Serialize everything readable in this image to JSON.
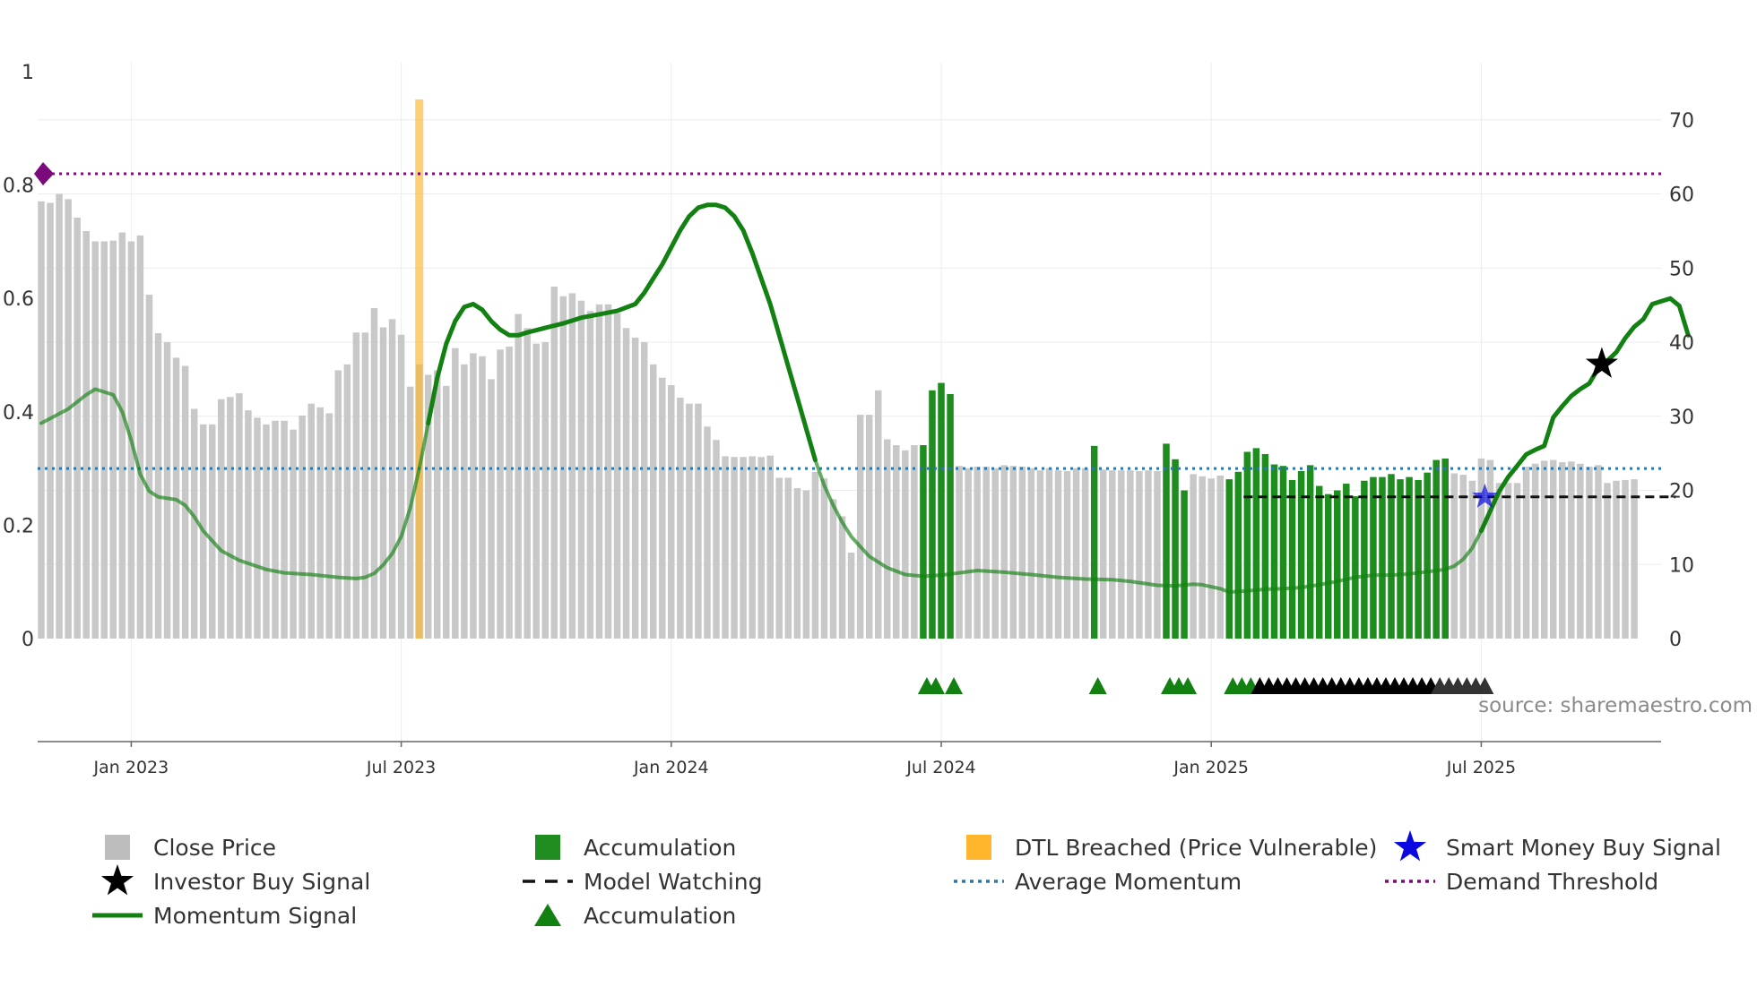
{
  "chart_data": {
    "type": "bar",
    "source_text": "source: sharemaestro.com",
    "left_axis": {
      "ticks": [
        "0",
        "0.2",
        "0.4",
        "0.6",
        "0.8",
        "1"
      ],
      "values": [
        0,
        0.2,
        0.4,
        0.6,
        0.8,
        1
      ],
      "range": [
        0,
        1
      ]
    },
    "right_axis": {
      "ticks": [
        "0",
        "10",
        "20",
        "30",
        "40",
        "50",
        "60",
        "70"
      ],
      "values": [
        0,
        10,
        20,
        30,
        40,
        50,
        60,
        70
      ],
      "range": [
        0,
        76.5
      ]
    },
    "x_axis": {
      "labels": [
        "Jan 2023",
        "Jul 2023",
        "Jan 2024",
        "Jul 2024",
        "Jan 2025",
        "Jul 2025"
      ],
      "label_week_index": [
        10,
        40,
        70,
        100,
        130,
        160
      ],
      "num_weeks": 181
    },
    "close_price": [
      59.0,
      58.8,
      60.0,
      59.3,
      56.8,
      55.0,
      53.6,
      53.6,
      53.7,
      54.8,
      53.6,
      54.4,
      46.4,
      41.2,
      40.0,
      37.9,
      36.8,
      31.0,
      28.9,
      28.9,
      32.3,
      32.6,
      33.1,
      30.8,
      29.8,
      28.9,
      29.4,
      29.4,
      28.2,
      30.1,
      31.7,
      31.2,
      30.4,
      36.2,
      37.0,
      41.3,
      41.3,
      44.6,
      42.0,
      43.1,
      41.0,
      34.0,
      37.0,
      35.6,
      36.2,
      34.1,
      39.2,
      37.0,
      38.5,
      38.1,
      35.0,
      39.0,
      39.4,
      43.8,
      41.9,
      39.8,
      40.0,
      47.5,
      46.2,
      46.6,
      45.6,
      44.2,
      45.1,
      45.1,
      43.9,
      41.9,
      40.6,
      40.0,
      37.0,
      35.2,
      34.2,
      32.5,
      31.7,
      31.7,
      28.6,
      26.8,
      24.6,
      24.5,
      24.5,
      24.6,
      24.5,
      24.7,
      21.7,
      21.7,
      20.3,
      20.0,
      22.5,
      21.6,
      18.8,
      16.5,
      11.6,
      30.2,
      30.2,
      33.5,
      26.9,
      26.1,
      25.4,
      26.1,
      26.8,
      25.1,
      24.8,
      23.4,
      23.3,
      23.0,
      23.2,
      23.2,
      23.0,
      23.4,
      23.3,
      23.2,
      23.0,
      22.7,
      23.0,
      22.7,
      22.6,
      23.0,
      23.0,
      22.0,
      22.8,
      22.7,
      22.7,
      22.7,
      22.6,
      22.7,
      22.6,
      22.5,
      22.3,
      21.9,
      22.2,
      21.9,
      21.6,
      22.0,
      21.7,
      21.6,
      21.6,
      21.6,
      21.8,
      21.3,
      21.5,
      21.4,
      21.5,
      21.9,
      21.9,
      21.9,
      22.3,
      22.1,
      21.4,
      21.8,
      22.2,
      22.6,
      22.6,
      22.5,
      22.6,
      22.5,
      22.3,
      22.3,
      22.2,
      22.3,
      22.1,
      21.3,
      24.3,
      24.1,
      21.0,
      21.0,
      21.0,
      23.2,
      23.6,
      24.0,
      24.1,
      23.8,
      23.9,
      23.6,
      23.2,
      23.4,
      21.0,
      21.3,
      21.4,
      21.5
    ],
    "accumulation_bars": [
      {
        "week": 98,
        "value": 26.1
      },
      {
        "week": 99,
        "value": 33.5
      },
      {
        "week": 100,
        "value": 34.5
      },
      {
        "week": 101,
        "value": 33.0
      },
      {
        "week": 117,
        "value": 26.0
      },
      {
        "week": 125,
        "value": 26.3
      },
      {
        "week": 126,
        "value": 24.2
      },
      {
        "week": 127,
        "value": 20.0
      },
      {
        "week": 132,
        "value": 21.5
      },
      {
        "week": 133,
        "value": 22.5
      },
      {
        "week": 134,
        "value": 25.2
      },
      {
        "week": 135,
        "value": 25.7
      },
      {
        "week": 136,
        "value": 24.9
      },
      {
        "week": 137,
        "value": 23.5
      },
      {
        "week": 138,
        "value": 23.3
      },
      {
        "week": 139,
        "value": 21.4
      },
      {
        "week": 140,
        "value": 22.6
      },
      {
        "week": 141,
        "value": 23.4
      },
      {
        "week": 142,
        "value": 20.6
      },
      {
        "week": 143,
        "value": 19.5
      },
      {
        "week": 144,
        "value": 20.0
      },
      {
        "week": 145,
        "value": 20.9
      },
      {
        "week": 146,
        "value": 19.2
      },
      {
        "week": 147,
        "value": 21.3
      },
      {
        "week": 148,
        "value": 21.8
      },
      {
        "week": 149,
        "value": 21.8
      },
      {
        "week": 150,
        "value": 22.2
      },
      {
        "week": 151,
        "value": 21.5
      },
      {
        "week": 152,
        "value": 21.8
      },
      {
        "week": 153,
        "value": 21.4
      },
      {
        "week": 154,
        "value": 22.4
      },
      {
        "week": 155,
        "value": 24.1
      },
      {
        "week": 156,
        "value": 24.3
      }
    ],
    "dtl_breached_weeks": [
      42
    ],
    "momentum_signal": [
      [
        0,
        0.38
      ],
      [
        3,
        0.405
      ],
      [
        5,
        0.43
      ],
      [
        6,
        0.44
      ],
      [
        7,
        0.435
      ],
      [
        8,
        0.43
      ],
      [
        9,
        0.4
      ],
      [
        10,
        0.35
      ],
      [
        11,
        0.29
      ],
      [
        12,
        0.26
      ],
      [
        13,
        0.25
      ],
      [
        15,
        0.245
      ],
      [
        16,
        0.235
      ],
      [
        17,
        0.215
      ],
      [
        18,
        0.19
      ],
      [
        20,
        0.155
      ],
      [
        22,
        0.138
      ],
      [
        25,
        0.122
      ],
      [
        27,
        0.116
      ],
      [
        30,
        0.113
      ],
      [
        33,
        0.108
      ],
      [
        35,
        0.106
      ],
      [
        36,
        0.108
      ],
      [
        37,
        0.115
      ],
      [
        38,
        0.13
      ],
      [
        39,
        0.15
      ],
      [
        40,
        0.18
      ],
      [
        41,
        0.23
      ],
      [
        42,
        0.3
      ],
      [
        43,
        0.38
      ],
      [
        44,
        0.46
      ],
      [
        45,
        0.52
      ],
      [
        46,
        0.56
      ],
      [
        47,
        0.585
      ],
      [
        48,
        0.59
      ],
      [
        49,
        0.58
      ],
      [
        50,
        0.56
      ],
      [
        51,
        0.545
      ],
      [
        52,
        0.535
      ],
      [
        53,
        0.535
      ],
      [
        54,
        0.54
      ],
      [
        56,
        0.548
      ],
      [
        58,
        0.556
      ],
      [
        60,
        0.566
      ],
      [
        62,
        0.572
      ],
      [
        64,
        0.578
      ],
      [
        66,
        0.59
      ],
      [
        67,
        0.61
      ],
      [
        68,
        0.635
      ],
      [
        69,
        0.66
      ],
      [
        70,
        0.69
      ],
      [
        71,
        0.72
      ],
      [
        72,
        0.745
      ],
      [
        73,
        0.76
      ],
      [
        74,
        0.765
      ],
      [
        75,
        0.765
      ],
      [
        76,
        0.76
      ],
      [
        77,
        0.745
      ],
      [
        78,
        0.72
      ],
      [
        79,
        0.68
      ],
      [
        80,
        0.635
      ],
      [
        81,
        0.59
      ],
      [
        82,
        0.535
      ],
      [
        83,
        0.48
      ],
      [
        84,
        0.425
      ],
      [
        85,
        0.37
      ],
      [
        86,
        0.315
      ],
      [
        87,
        0.27
      ],
      [
        88,
        0.235
      ],
      [
        89,
        0.205
      ],
      [
        90,
        0.18
      ],
      [
        92,
        0.145
      ],
      [
        94,
        0.125
      ],
      [
        96,
        0.113
      ],
      [
        98,
        0.11
      ],
      [
        100,
        0.112
      ],
      [
        102,
        0.116
      ],
      [
        104,
        0.12
      ],
      [
        107,
        0.117
      ],
      [
        110,
        0.113
      ],
      [
        113,
        0.108
      ],
      [
        116,
        0.105
      ],
      [
        119,
        0.104
      ],
      [
        121,
        0.101
      ],
      [
        124,
        0.094
      ],
      [
        126,
        0.093
      ],
      [
        128,
        0.096
      ],
      [
        129,
        0.095
      ],
      [
        131,
        0.088
      ],
      [
        132,
        0.082
      ],
      [
        134,
        0.084
      ],
      [
        136,
        0.087
      ],
      [
        138,
        0.088
      ],
      [
        140,
        0.09
      ],
      [
        142,
        0.095
      ],
      [
        144,
        0.101
      ],
      [
        146,
        0.108
      ],
      [
        148,
        0.112
      ],
      [
        150,
        0.112
      ],
      [
        152,
        0.114
      ],
      [
        154,
        0.118
      ],
      [
        156,
        0.122
      ],
      [
        157,
        0.128
      ],
      [
        158,
        0.14
      ],
      [
        159,
        0.16
      ],
      [
        160,
        0.19
      ],
      [
        161,
        0.225
      ],
      [
        162,
        0.26
      ],
      [
        163,
        0.285
      ],
      [
        164,
        0.305
      ],
      [
        165,
        0.325
      ],
      [
        166,
        0.333
      ],
      [
        167,
        0.34
      ],
      [
        168,
        0.39
      ],
      [
        169,
        0.41
      ],
      [
        170,
        0.428
      ],
      [
        171,
        0.44
      ],
      [
        172,
        0.45
      ],
      [
        173,
        0.477
      ],
      [
        174,
        0.49
      ],
      [
        175,
        0.505
      ],
      [
        176,
        0.53
      ],
      [
        177,
        0.55
      ],
      [
        178,
        0.563
      ],
      [
        179,
        0.59
      ],
      [
        180,
        0.595
      ],
      [
        181,
        0.6
      ],
      [
        182,
        0.587
      ],
      [
        183,
        0.535
      ]
    ],
    "model_watching": {
      "from_week": 133,
      "to_week": 181,
      "value": 0.25
    },
    "average_momentum": 0.3,
    "demand_threshold": 0.82,
    "investor_buy_signal": {
      "week": 172,
      "value": 0.5
    },
    "smart_money_buy_signal": {
      "week": 160,
      "value": 0.25
    },
    "accumulation_markers": [
      {
        "week": 98,
        "color": "#128112"
      },
      {
        "week": 99,
        "color": "#128112"
      },
      {
        "week": 101,
        "color": "#128112"
      },
      {
        "week": 117,
        "color": "#128112"
      },
      {
        "week": 125,
        "color": "#128112"
      },
      {
        "week": 126,
        "color": "#128112"
      },
      {
        "week": 127,
        "color": "#128112"
      },
      {
        "week": 132,
        "color": "#128112"
      },
      {
        "week": 133,
        "color": "#128112"
      },
      {
        "week": 134,
        "color": "#128112"
      },
      {
        "week": 135,
        "color": "#000000"
      },
      {
        "week": 136,
        "color": "#000000"
      },
      {
        "week": 137,
        "color": "#000000"
      },
      {
        "week": 138,
        "color": "#000000"
      },
      {
        "week": 139,
        "color": "#000000"
      },
      {
        "week": 140,
        "color": "#000000"
      },
      {
        "week": 141,
        "color": "#000000"
      },
      {
        "week": 142,
        "color": "#000000"
      },
      {
        "week": 143,
        "color": "#000000"
      },
      {
        "week": 144,
        "color": "#000000"
      },
      {
        "week": 145,
        "color": "#000000"
      },
      {
        "week": 146,
        "color": "#000000"
      },
      {
        "week": 147,
        "color": "#000000"
      },
      {
        "week": 148,
        "color": "#000000"
      },
      {
        "week": 149,
        "color": "#000000"
      },
      {
        "week": 150,
        "color": "#000000"
      },
      {
        "week": 151,
        "color": "#000000"
      },
      {
        "week": 152,
        "color": "#000000"
      },
      {
        "week": 153,
        "color": "#000000"
      },
      {
        "week": 154,
        "color": "#000000"
      },
      {
        "week": 155,
        "color": "#333333"
      },
      {
        "week": 156,
        "color": "#333333"
      },
      {
        "week": 157,
        "color": "#333333"
      },
      {
        "week": 158,
        "color": "#333333"
      },
      {
        "week": 159,
        "color": "#333333"
      },
      {
        "week": 160,
        "color": "#333333"
      }
    ],
    "colors": {
      "close_price": "#c8c8c8",
      "accumulation": "#1e8c1e",
      "dtl_breached": "#ffb62d",
      "momentum": "#128112",
      "model_watching": "#111111",
      "average_momentum": "#2f77a8",
      "demand_threshold": "#7b0b7b",
      "investor_buy": "#000000",
      "smart_money_buy": "#0a0ae0",
      "gridline": "#ececec",
      "axis": "#666666"
    },
    "legend": [
      {
        "key": "close_price",
        "label": "Close Price",
        "symbol": "square",
        "color": "#bdbdbd"
      },
      {
        "key": "accumulation_bar",
        "label": "Accumulation",
        "symbol": "square",
        "color": "#1e8c1e"
      },
      {
        "key": "dtl_breached",
        "label": "DTL Breached (Price Vulnerable)",
        "symbol": "square",
        "color": "#ffb62d"
      },
      {
        "key": "smart_money_buy",
        "label": "Smart Money Buy Signal",
        "symbol": "star",
        "color": "#0a0ae0"
      },
      {
        "key": "investor_buy",
        "label": "Investor Buy Signal",
        "symbol": "star",
        "color": "#000000"
      },
      {
        "key": "model_watching",
        "label": "Model Watching",
        "symbol": "dash",
        "color": "#111111"
      },
      {
        "key": "average_momentum",
        "label": "Average Momentum",
        "symbol": "dot",
        "color": "#2f77a8"
      },
      {
        "key": "demand_threshold",
        "label": "Demand Threshold",
        "symbol": "dot",
        "color": "#7b0b7b"
      },
      {
        "key": "momentum",
        "label": "Momentum Signal",
        "symbol": "line",
        "color": "#128112"
      },
      {
        "key": "accumulation_marker",
        "label": "Accumulation",
        "symbol": "triangle",
        "color": "#128112"
      }
    ]
  }
}
